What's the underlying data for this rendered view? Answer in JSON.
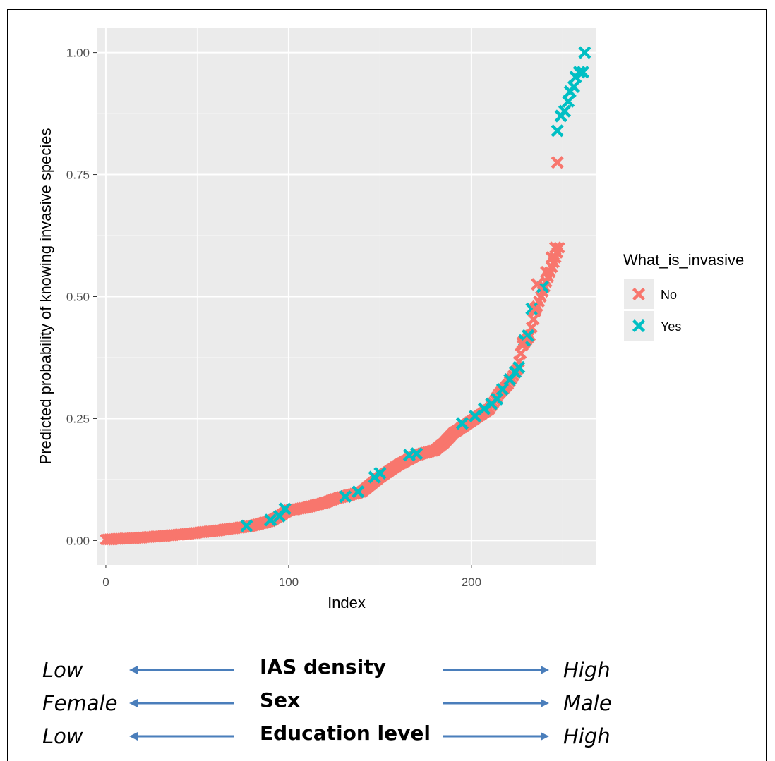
{
  "chart_data": {
    "type": "scatter",
    "xlabel": "Index",
    "ylabel": "Predicted probability of knowing invasive species",
    "xlim": [
      -5,
      268
    ],
    "ylim": [
      -0.05,
      1.05
    ],
    "x_ticks": [
      0,
      100,
      200
    ],
    "x_tick_labels": [
      "0",
      "100",
      "200"
    ],
    "y_ticks": [
      0,
      0.25,
      0.5,
      0.75,
      1.0
    ],
    "y_tick_labels": [
      "0.00",
      "0.25",
      "0.50",
      "0.75",
      "1.00"
    ],
    "grid": true,
    "marker": "x",
    "legend": {
      "title": "What_is_invasive",
      "placement": "right",
      "entries": [
        {
          "label": "No",
          "color": "#f8766d"
        },
        {
          "label": "Yes",
          "color": "#00bfc4"
        }
      ]
    },
    "curve": {
      "x": [
        0,
        20,
        40,
        60,
        80,
        90,
        95,
        100,
        110,
        120,
        125,
        130,
        140,
        145,
        150,
        160,
        170,
        175,
        180,
        185,
        190,
        200,
        210,
        215,
        220,
        225,
        228,
        232,
        235,
        240,
        243,
        246,
        248
      ],
      "y": [
        0.002,
        0.006,
        0.012,
        0.02,
        0.03,
        0.04,
        0.05,
        0.062,
        0.068,
        0.078,
        0.085,
        0.09,
        0.1,
        0.115,
        0.13,
        0.155,
        0.175,
        0.18,
        0.185,
        0.2,
        0.22,
        0.245,
        0.27,
        0.3,
        0.32,
        0.35,
        0.4,
        0.42,
        0.47,
        0.52,
        0.55,
        0.58,
        0.6
      ]
    },
    "series": [
      {
        "name": "Yes",
        "color": "#00bfc4",
        "points": [
          [
            77,
            0.03
          ],
          [
            90,
            0.042
          ],
          [
            95,
            0.05
          ],
          [
            98,
            0.065
          ],
          [
            131,
            0.09
          ],
          [
            138,
            0.1
          ],
          [
            147,
            0.13
          ],
          [
            150,
            0.138
          ],
          [
            166,
            0.175
          ],
          [
            170,
            0.178
          ],
          [
            195,
            0.24
          ],
          [
            202,
            0.255
          ],
          [
            207,
            0.27
          ],
          [
            211,
            0.28
          ],
          [
            214,
            0.29
          ],
          [
            217,
            0.31
          ],
          [
            221,
            0.33
          ],
          [
            224,
            0.345
          ],
          [
            226,
            0.355
          ],
          [
            229,
            0.41
          ],
          [
            231,
            0.42
          ],
          [
            233,
            0.475
          ],
          [
            239,
            0.52
          ],
          [
            247,
            0.84
          ],
          [
            249,
            0.87
          ],
          [
            251,
            0.88
          ],
          [
            253,
            0.9
          ],
          [
            254,
            0.92
          ],
          [
            256,
            0.93
          ],
          [
            257,
            0.95
          ],
          [
            259,
            0.96
          ],
          [
            261,
            0.96
          ],
          [
            262,
            1.0
          ]
        ]
      },
      {
        "name": "No",
        "color": "#f8766d",
        "points": [
          [
            228,
            0.405
          ],
          [
            235,
            0.475
          ],
          [
            236,
            0.525
          ],
          [
            241,
            0.55
          ],
          [
            244,
            0.58
          ],
          [
            246,
            0.6
          ],
          [
            247,
            0.775
          ]
        ]
      }
    ]
  },
  "factors": [
    {
      "left": "Low",
      "center": "IAS density",
      "right": "High"
    },
    {
      "left": "Female",
      "center": "Sex",
      "right": "Male"
    },
    {
      "left": "Low",
      "center": "Education level",
      "right": "High"
    }
  ],
  "colors": {
    "arrow": "#4a7ebb",
    "panel": "#ebebeb",
    "grid": "#ffffff"
  }
}
